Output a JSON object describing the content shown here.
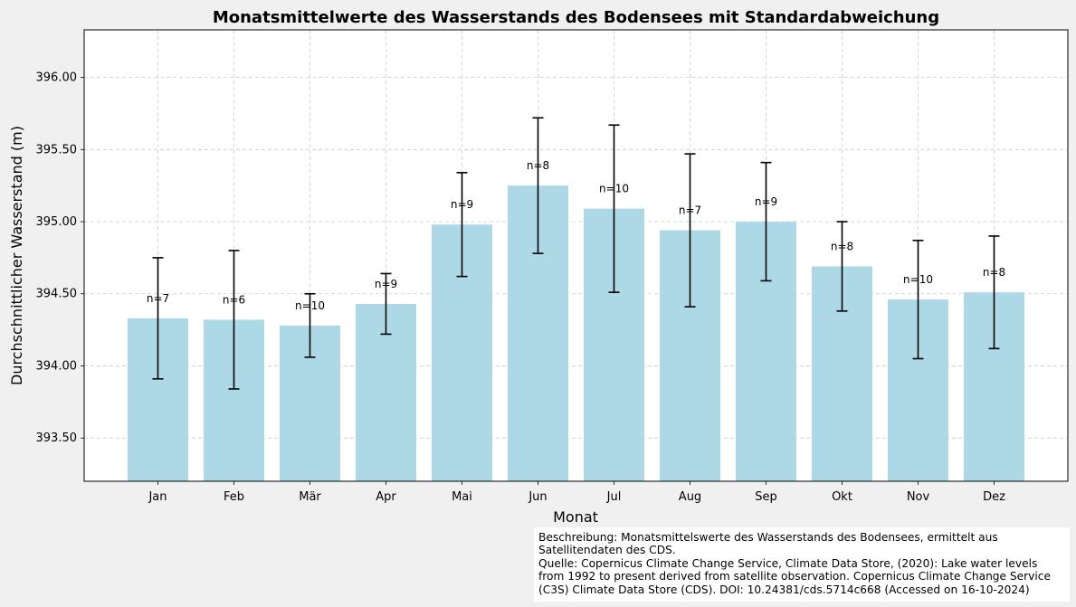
{
  "chart_data": {
    "type": "bar",
    "title": "Monatsmittelwerte des Wasserstands des Bodensees mit Standardabweichung",
    "xlabel": "Monat",
    "ylabel": "Durchschnittlicher Wasserstand (m)",
    "categories": [
      "Jan",
      "Feb",
      "Mär",
      "Apr",
      "Mai",
      "Jun",
      "Jul",
      "Aug",
      "Sep",
      "Okt",
      "Nov",
      "Dez"
    ],
    "values": [
      394.33,
      394.32,
      394.28,
      394.43,
      394.98,
      395.25,
      395.09,
      394.94,
      395.0,
      394.69,
      394.46,
      394.51
    ],
    "error": [
      0.42,
      0.48,
      0.22,
      0.21,
      0.36,
      0.47,
      0.58,
      0.53,
      0.41,
      0.31,
      0.41,
      0.39
    ],
    "n_labels": [
      "n=7",
      "n=6",
      "n=10",
      "n=9",
      "n=9",
      "n=8",
      "n=10",
      "n=7",
      "n=9",
      "n=8",
      "n=10",
      "n=8"
    ],
    "ylim": [
      393.2,
      396.33
    ],
    "yticks": [
      "393.50",
      "394.00",
      "394.50",
      "395.00",
      "395.50",
      "396.00"
    ],
    "grid": true,
    "colors": {
      "bar": "#add8e6",
      "error_bar": "#000000",
      "grid": "#cccccc",
      "background": "#f0f0f0"
    }
  },
  "caption": {
    "lines": [
      "Beschreibung: Monatsmittelswerte des Wasserstands des Bodensees, ermittelt aus",
      "Satellitendaten des CDS.",
      "Quelle: Copernicus Climate Change Service, Climate Data Store, (2020): Lake water levels",
      "from 1992 to present derived from satellite observation. Copernicus Climate Change Service",
      "(C3S) Climate Data Store (CDS). DOI: 10.24381/cds.5714c668 (Accessed on 16-10-2024)"
    ]
  }
}
